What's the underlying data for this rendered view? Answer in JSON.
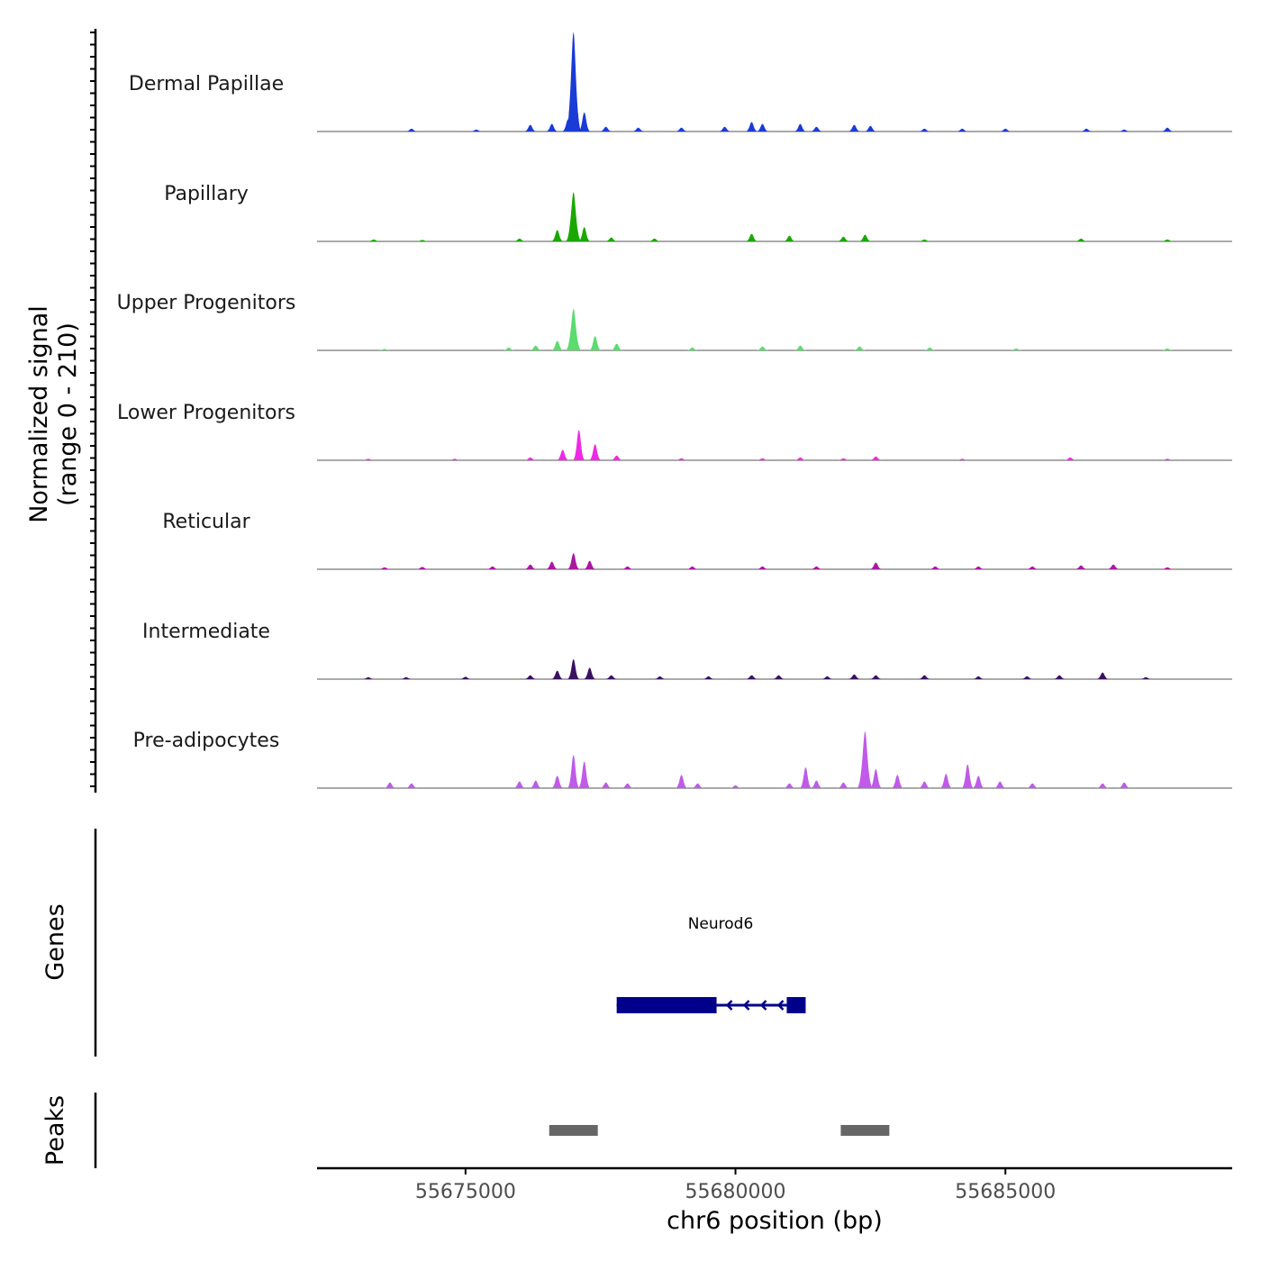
{
  "chart_data": {
    "type": "area",
    "title": "",
    "y_axis_label_line1": "Normalized signal",
    "y_axis_label_line2": "(range 0 - 210)",
    "y_range": [
      0,
      210
    ],
    "xlabel": "chr6 position (bp)",
    "x_range": [
      55672250,
      55689200
    ],
    "x_ticks": [
      55675000,
      55680000,
      55685000
    ],
    "x_tick_labels": [
      "55675000",
      "55680000",
      "55685000"
    ],
    "series": [
      {
        "name": "Dermal Papillae",
        "color": "#1a3bd6",
        "peaks": [
          [
            55674000,
            6
          ],
          [
            55675200,
            4
          ],
          [
            55676200,
            14
          ],
          [
            55676600,
            16
          ],
          [
            55676900,
            26
          ],
          [
            55677000,
            210
          ],
          [
            55677200,
            40
          ],
          [
            55677600,
            10
          ],
          [
            55678200,
            8
          ],
          [
            55679000,
            8
          ],
          [
            55679800,
            10
          ],
          [
            55680300,
            20
          ],
          [
            55680500,
            16
          ],
          [
            55681200,
            16
          ],
          [
            55681500,
            10
          ],
          [
            55682200,
            14
          ],
          [
            55682500,
            12
          ],
          [
            55683500,
            6
          ],
          [
            55684200,
            6
          ],
          [
            55685000,
            6
          ],
          [
            55686500,
            6
          ],
          [
            55687200,
            4
          ],
          [
            55688000,
            8
          ]
        ]
      },
      {
        "name": "Papillary",
        "color": "#1aa800",
        "peaks": [
          [
            55673300,
            4
          ],
          [
            55674200,
            3
          ],
          [
            55676000,
            6
          ],
          [
            55676700,
            24
          ],
          [
            55677000,
            104
          ],
          [
            55677200,
            30
          ],
          [
            55677700,
            8
          ],
          [
            55678500,
            6
          ],
          [
            55680300,
            16
          ],
          [
            55681000,
            12
          ],
          [
            55682000,
            10
          ],
          [
            55682400,
            14
          ],
          [
            55683500,
            4
          ],
          [
            55686400,
            6
          ],
          [
            55688000,
            4
          ]
        ]
      },
      {
        "name": "Upper Progenitors",
        "color": "#5adc6e",
        "peaks": [
          [
            55673500,
            3
          ],
          [
            55675800,
            6
          ],
          [
            55676300,
            10
          ],
          [
            55676700,
            20
          ],
          [
            55677000,
            88
          ],
          [
            55677400,
            30
          ],
          [
            55677800,
            14
          ],
          [
            55679200,
            6
          ],
          [
            55680500,
            8
          ],
          [
            55681200,
            10
          ],
          [
            55682300,
            8
          ],
          [
            55683600,
            6
          ],
          [
            55685200,
            4
          ],
          [
            55688000,
            4
          ]
        ]
      },
      {
        "name": "Lower Progenitors",
        "color": "#f028e6",
        "peaks": [
          [
            55673200,
            3
          ],
          [
            55674800,
            3
          ],
          [
            55676200,
            6
          ],
          [
            55676800,
            22
          ],
          [
            55677100,
            64
          ],
          [
            55677400,
            34
          ],
          [
            55677800,
            10
          ],
          [
            55679000,
            4
          ],
          [
            55680500,
            4
          ],
          [
            55681200,
            6
          ],
          [
            55682000,
            4
          ],
          [
            55682600,
            8
          ],
          [
            55684200,
            3
          ],
          [
            55686200,
            6
          ],
          [
            55688000,
            3
          ]
        ]
      },
      {
        "name": "Reticular",
        "color": "#a8189e",
        "peaks": [
          [
            55673500,
            4
          ],
          [
            55674200,
            5
          ],
          [
            55675500,
            6
          ],
          [
            55676200,
            10
          ],
          [
            55676600,
            16
          ],
          [
            55677000,
            34
          ],
          [
            55677300,
            18
          ],
          [
            55678000,
            6
          ],
          [
            55679200,
            6
          ],
          [
            55680500,
            6
          ],
          [
            55681500,
            6
          ],
          [
            55682600,
            14
          ],
          [
            55683700,
            6
          ],
          [
            55684500,
            6
          ],
          [
            55685500,
            6
          ],
          [
            55686400,
            8
          ],
          [
            55687000,
            10
          ],
          [
            55688000,
            4
          ]
        ]
      },
      {
        "name": "Intermediate",
        "color": "#3a1060",
        "peaks": [
          [
            55673200,
            4
          ],
          [
            55673900,
            4
          ],
          [
            55675000,
            5
          ],
          [
            55676200,
            8
          ],
          [
            55676700,
            18
          ],
          [
            55677000,
            42
          ],
          [
            55677300,
            24
          ],
          [
            55677700,
            8
          ],
          [
            55678600,
            6
          ],
          [
            55679500,
            6
          ],
          [
            55680300,
            8
          ],
          [
            55680800,
            8
          ],
          [
            55681700,
            6
          ],
          [
            55682200,
            10
          ],
          [
            55682600,
            8
          ],
          [
            55683500,
            8
          ],
          [
            55684500,
            6
          ],
          [
            55685400,
            6
          ],
          [
            55686000,
            8
          ],
          [
            55686800,
            14
          ],
          [
            55687600,
            4
          ]
        ]
      },
      {
        "name": "Pre-adipocytes",
        "color": "#c05ae8",
        "peaks": [
          [
            55673600,
            12
          ],
          [
            55674000,
            10
          ],
          [
            55676000,
            14
          ],
          [
            55676300,
            16
          ],
          [
            55676700,
            26
          ],
          [
            55677000,
            70
          ],
          [
            55677200,
            56
          ],
          [
            55677600,
            12
          ],
          [
            55678000,
            10
          ],
          [
            55679000,
            28
          ],
          [
            55679300,
            10
          ],
          [
            55680000,
            6
          ],
          [
            55681000,
            10
          ],
          [
            55681300,
            44
          ],
          [
            55681500,
            16
          ],
          [
            55682000,
            12
          ],
          [
            55682400,
            120
          ],
          [
            55682600,
            40
          ],
          [
            55683000,
            28
          ],
          [
            55683500,
            14
          ],
          [
            55683900,
            30
          ],
          [
            55684300,
            50
          ],
          [
            55684500,
            26
          ],
          [
            55684900,
            14
          ],
          [
            55685500,
            10
          ],
          [
            55686800,
            10
          ],
          [
            55687200,
            12
          ]
        ]
      }
    ],
    "genes_label": "Genes",
    "gene": {
      "name": "Neurod6",
      "start": 55677800,
      "end": 55681300,
      "exons": [
        [
          55677800,
          55679650
        ],
        [
          55680950,
          55681300
        ]
      ],
      "strand": "-",
      "color": "#00008b"
    },
    "peaks_label": "Peaks",
    "called_peaks": [
      [
        55676550,
        55677450
      ],
      [
        55681950,
        55682850
      ]
    ],
    "peak_color": "#666666"
  }
}
